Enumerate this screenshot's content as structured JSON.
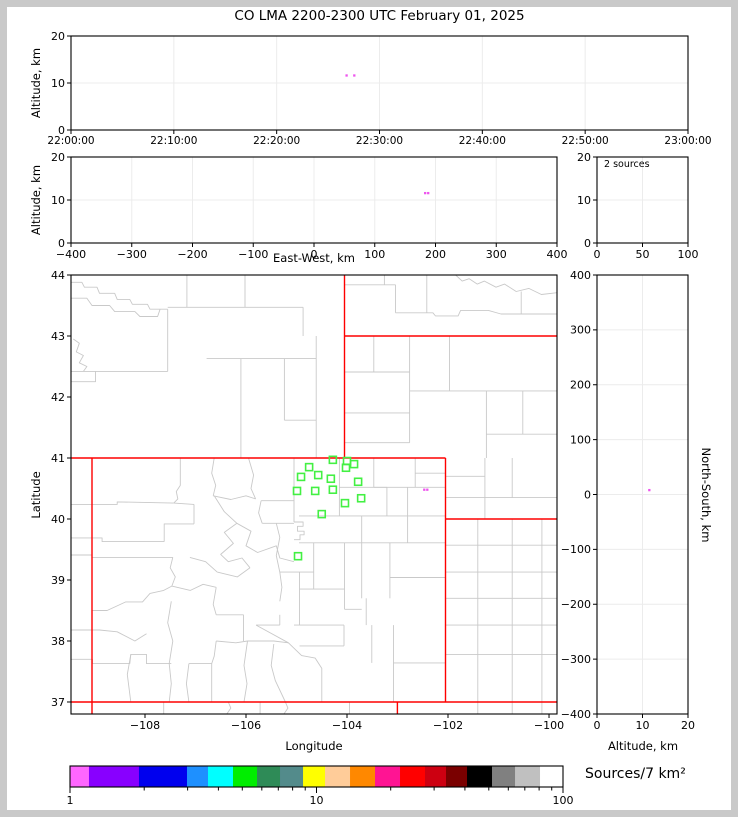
{
  "title": "CO LMA 2200-2300 UTC February 01, 2025",
  "labels": {
    "altitude_y": "Altitude, km",
    "east_west": "East-West, km",
    "latitude": "Latitude",
    "longitude": "Longitude",
    "altitude_bottom": "Altitude, km",
    "north_south": "North-South, km",
    "sources_annotation": "2 sources",
    "colorbar_label": "Sources/7 km²"
  },
  "colors": {
    "station": "#43f043",
    "source": "#ee55ee",
    "state_border": "#fe0000",
    "county": "#c9c9c9",
    "grid": "#ececec",
    "axis": "#000000",
    "frame": "#c9c9c9"
  },
  "chart_data": [
    {
      "id": "time_height",
      "type": "scatter",
      "ylabel": "Altitude, km",
      "x_ticks": [
        "22:00:00",
        "22:10:00",
        "22:20:00",
        "22:30:00",
        "22:40:00",
        "22:50:00",
        "23:00:00"
      ],
      "y_ticks": [
        "0",
        "10",
        "20"
      ],
      "xlim_seconds": [
        0,
        3600
      ],
      "ylim": [
        0,
        20
      ],
      "points": [
        {
          "time": "22:26:48",
          "t_seconds": 1608,
          "alt_km": 11.6
        },
        {
          "time": "22:27:33",
          "t_seconds": 1653,
          "alt_km": 11.6
        }
      ]
    },
    {
      "id": "ew_height",
      "type": "scatter",
      "xlabel": "East-West, km",
      "ylabel": "Altitude, km",
      "x_ticks": [
        "−400",
        "−300",
        "−200",
        "−100",
        "0",
        "100",
        "200",
        "300",
        "400"
      ],
      "y_ticks": [
        "0",
        "10",
        "20"
      ],
      "xlim": [
        -400,
        400
      ],
      "ylim": [
        0,
        20
      ],
      "points": [
        {
          "ew_km": 183,
          "alt_km": 11.6
        },
        {
          "ew_km": 188,
          "alt_km": 11.6
        }
      ]
    },
    {
      "id": "alt_histogram",
      "type": "histogram",
      "annotation": "2 sources",
      "x_ticks": [
        "0",
        "50",
        "100"
      ],
      "y_ticks": [
        "0",
        "10",
        "20"
      ],
      "xlim": [
        0,
        100
      ],
      "ylim": [
        0,
        20
      ],
      "values": []
    },
    {
      "id": "plan_map",
      "type": "map",
      "xlabel": "Longitude",
      "ylabel": "Latitude",
      "x_ticks": [
        "−108",
        "−106",
        "−104",
        "−102",
        "−100"
      ],
      "y_ticks": [
        "44",
        "43",
        "42",
        "41",
        "40",
        "39",
        "38",
        "37"
      ],
      "lonlim": [
        -109.465,
        -99.842
      ],
      "latlim": [
        36.803,
        44
      ],
      "stations": [
        {
          "lon": -104.28,
          "lat": 40.97
        },
        {
          "lon": -104.0,
          "lat": 40.95
        },
        {
          "lon": -103.86,
          "lat": 40.9
        },
        {
          "lon": -104.02,
          "lat": 40.84
        },
        {
          "lon": -104.75,
          "lat": 40.85
        },
        {
          "lon": -104.57,
          "lat": 40.72
        },
        {
          "lon": -104.91,
          "lat": 40.69
        },
        {
          "lon": -104.32,
          "lat": 40.66
        },
        {
          "lon": -103.78,
          "lat": 40.61
        },
        {
          "lon": -104.99,
          "lat": 40.46
        },
        {
          "lon": -104.63,
          "lat": 40.46
        },
        {
          "lon": -104.28,
          "lat": 40.48
        },
        {
          "lon": -103.72,
          "lat": 40.34
        },
        {
          "lon": -104.04,
          "lat": 40.26
        },
        {
          "lon": -104.5,
          "lat": 40.08
        },
        {
          "lon": -104.97,
          "lat": 39.39
        }
      ],
      "sources": [
        {
          "lon": -102.47,
          "lat": 40.48
        },
        {
          "lon": -102.41,
          "lat": 40.48
        }
      ],
      "state_borders": [
        "-109.465,41 -102.05,41",
        "-104.05,44 -104.05,41",
        "-104.05,43 -99.842,43",
        "-102.05,41 -102.05,37",
        "-102.05,40 -99.842,40",
        "-109.05,41 -109.05,36.803",
        "-109.465,37 -99.842,37",
        "-103.002,37 -103.002,36.803"
      ],
      "county_lines": [
        "-109.465,43.88 -109.25,43.88 -109.2,43.8 -108.95,43.8 -108.9,43.7 -108.6,43.7 -108.55,43.6 -108.3,43.6 -108.25,43.52 -107.95,43.52 -107.9,43.44 -107.55,43.44",
        "-109.465,43.62 -109.15,43.62 -109.05,43.5 -108.7,43.5 -108.6,43.4 -108.2,43.4 -108.1,43.32 -107.75,43.32 -107.7,43.44",
        "-107.17,44 -107.17,43.47",
        "-106.02,44 -106.02,43.47",
        "-107.55,43.47 -104.87,43.47",
        "-104.87,43.47 -104.87,43.0",
        "-107.55,43.44 -107.55,42.42",
        "-109.465,42.42 -107.55,42.42",
        "-109.465,42.25 -108.98,42.25 -108.98,42.42",
        "-109.42,42.95 -109.3,42.88 -109.36,42.74 -109.22,42.68 -109.3,42.56 -109.15,42.5 -109.22,42.42",
        "-106.78,42.63 -104.61,42.63",
        "-106.1,42.63 -106.1,41.0",
        "-105.24,42.63 -105.24,41.62",
        "-104.61,43.0 -104.61,41.0",
        "-105.24,41.62 -104.61,41.62",
        "-103.26,44 -103.26,43.84",
        "-104.05,43.84 -103.04,43.84",
        "-103.04,43.84 -103.04,43.38",
        "-103.04,43.38 -102.3,43.38 -102.25,43.33 -101.8,43.33 -101.75,43.42 -101.2,43.42 -100.95,43.36 -99.842,43.36",
        "-102.42,44 -102.42,43.38",
        "-101.85,44 -101.72,43.9 -101.58,43.94 -101.42,43.85 -101.28,43.9 -101.05,43.8 -100.88,43.85 -100.65,43.73 -100.4,43.78 -100.15,43.68 -99.842,43.71",
        "-100.55,43.73 -100.55,43.36",
        "-103.47,43.0 -103.47,42.41",
        "-104.05,42.41 -102.76,42.41",
        "-102.76,43.0 -102.76,41.25",
        "-101.97,43.0 -101.97,42.1",
        "-102.76,42.1 -99.842,42.1",
        "-101.24,42.1 -101.24,41.0",
        "-100.52,42.1 -100.52,41.39",
        "-104.05,41.74 -102.76,41.74",
        "-104.05,41.25 -102.76,41.25",
        "-101.24,41.39 -99.842,41.39",
        "-101.27,41.0 -101.27,40.0",
        "-100.73,41.0 -100.73,40.35",
        "-102.05,40.35 -99.842,40.35",
        "-102.05,40.7 -101.27,40.7",
        "-101.41,40.0 -101.41,36.803",
        "-100.73,40.0 -100.73,36.803",
        "-100.14,40.0 -100.14,36.803",
        "-102.05,39.57 -99.842,39.57",
        "-102.05,39.13 -99.842,39.13",
        "-102.05,38.7 -99.842,38.7",
        "-102.05,38.26 -99.842,38.26",
        "-102.05,37.78 -99.842,37.78",
        "-107.63,37.0 -107.63,36.803",
        "-106.35,37.0 -106.3,36.9 -106.38,36.803",
        "-105.72,37.0 -105.72,36.803",
        "-103.95,37.0 -103.95,36.803",
        "-105.22,37.0 -105.17,36.9 -105.25,36.803",
        "-107.3,41.0 -107.3,40.55 -107.38,40.45 -107.35,40.33 -107.43,40.26",
        "-109.465,40.24 -108.55,40.24 -108.55,40.28 -107.43,40.26",
        "-107.43,40.26 -107.03,40.24",
        "-106.63,41.0 -106.68,40.75 -106.6,40.55 -106.65,40.38",
        "-106.65,40.38 -106.3,40.32 -106.0,40.38 -105.81,40.33",
        "-105.95,41.0 -105.85,40.72 -105.9,40.5 -105.81,40.33",
        "-109.465,39.69 -108.85,39.69 -108.85,39.63 -107.62,39.63",
        "-107.62,39.63 -107.62,39.92 -107.03,39.92",
        "-107.03,40.24 -107.03,39.92",
        "-109.465,39.41 -109.05,39.41 -109.05,39.37 -107.45,39.37",
        "-107.45,39.37 -107.5,39.2 -107.4,39.05 -107.47,38.9",
        "-109.06,38.5 -108.75,38.5 -108.38,38.64 -108.05,38.64 -107.9,38.78 -107.63,38.83 -107.47,38.9",
        "-109.465,38.18 -108.9,38.18 -108.55,38.15 -108.2,38.0 -107.97,38.12",
        "-109.465,37.7 -109.04,37.7 -109.04,37.63 -108.3,37.63 -108.28,37.78 -107.97,37.78 -107.97,37.63 -107.48,37.63",
        "-108.28,37.78 -108.35,37.45 -108.28,37.0",
        "-107.48,38.65 -107.55,38.3 -107.45,38.0 -107.52,37.63",
        "-107.52,37.63 -107.48,37.3 -107.52,37.0",
        "-107.13,37.63 -107.18,37.3 -107.13,37.0",
        "-107.47,38.9 -107.1,38.83 -106.85,38.93 -106.59,38.88",
        "-106.59,38.88 -106.65,38.6 -106.59,38.43",
        "-106.05,38.43 -106.05,38.0",
        "-106.05,38.43 -106.59,38.43",
        "-106.18,39.93 -105.9,39.8 -106.0,39.56 -105.77,39.45 -105.4,39.56 -105.33,39.36 -105.05,39.3",
        "-106.63,40.38 -106.43,40.12 -106.18,39.93",
        "-106.18,39.93 -106.43,39.78 -106.25,39.6 -106.5,39.42 -106.35,39.3 -106.08,39.36 -105.92,39.2",
        "-105.92,39.2 -106.17,39.05 -106.57,39.13",
        "-106.57,39.13 -106.8,39.3 -107.11,39.37",
        "-105.4,39.93 -105.33,39.7 -105.4,39.4 -105.33,39.13",
        "-105.33,39.13 -104.66,39.13",
        "-105.7,40.3 -105.05,40.3",
        "-105.7,40.3 -105.75,40.1 -105.68,39.93",
        "-105.68,39.93 -105.05,39.93",
        "-105.05,41.0 -105.05,39.95",
        "-105.05,39.95 -104.87,39.95 -104.87,39.88 -104.98,39.88 -104.98,39.8 -104.85,39.8 -104.85,39.74 -104.93,39.74 -104.93,39.66 -105.05,39.66",
        "-105.33,39.13 -105.29,38.88 -105.33,38.65",
        "-104.94,38.85 -104.05,38.85",
        "-104.94,39.13 -104.94,38.26",
        "-105.8,38.26 -105.33,38.26",
        "-105.33,38.43 -105.33,38.26",
        "-105.8,38.26 -105.16,37.97",
        "-104.15,41.0 -104.15,40.05",
        "-104.15,40.52 -103.21,40.52",
        "-103.21,40.52 -103.21,40.05",
        "-103.47,41.0 -103.47,40.52",
        "-104.95,40.05 -102.05,40.05",
        "-102.65,41.0 -102.65,40.52",
        "-102.65,40.75 -102.05,40.75",
        "-103.47,40.52 -102.05,40.52",
        "-102.8,40.52 -102.8,39.61",
        "-103.71,40.05 -103.71,38.7",
        "-104.95,39.61 -102.05,39.61",
        "-104.66,39.61 -104.66,38.85",
        "-104.05,39.61 -104.05,38.52",
        "-103.15,39.61 -103.15,38.7",
        "-103.15,39.04 -102.05,39.04",
        "-103.62,38.7 -103.62,38.26",
        "-103.09,37.64 -102.05,37.64",
        "-103.08,38.26 -103.08,37.0",
        "-104.06,38.26 -104.06,37.92",
        "-104.94,37.92 -104.06,37.92",
        "-105.05,38.26 -104.06,38.26",
        "-103.51,38.26 -103.51,37.64",
        "-104.05,38.52 -103.71,38.52",
        "-105.16,37.97 -104.9,37.76 -104.63,37.72 -104.5,37.55 -104.5,37.0",
        "-105.97,38.0 -106.2,37.97 -106.59,38.0",
        "-105.97,38.0 -105.45,38.0 -105.16,37.97",
        "-105.97,38.0 -106.04,37.6 -105.98,37.3 -106.04,37.0",
        "-105.45,37.95 -105.5,37.6 -105.42,37.35 -105.22,37.0",
        "-106.68,37.63 -106.68,37.0",
        "-107.13,37.63 -106.68,37.63",
        "-106.59,38.0 -106.63,37.75 -106.68,37.63"
      ]
    },
    {
      "id": "ns_height",
      "type": "scatter",
      "xlabel": "Altitude, km",
      "ylabel": "North-South, km",
      "x_ticks": [
        "0",
        "10",
        "20"
      ],
      "y_ticks": [
        "400",
        "300",
        "200",
        "100",
        "0",
        "−100",
        "−200",
        "−300",
        "−400"
      ],
      "xlim": [
        0,
        20
      ],
      "ylim": [
        -400,
        400
      ],
      "points": [
        {
          "alt_km": 11.5,
          "ns_km": 8
        }
      ]
    }
  ],
  "colorbar": {
    "label": "Sources/7 km²",
    "scale": "log",
    "range": [
      1,
      100
    ],
    "tick_labels": [
      "1",
      "10",
      "100"
    ],
    "segments": [
      {
        "color": "#ff66ff",
        "width": 0.0385
      },
      {
        "color": "#8800ff",
        "width": 0.1014
      },
      {
        "color": "#0000ee",
        "width": 0.0974
      },
      {
        "color": "#1e90ff",
        "width": 0.0426
      },
      {
        "color": "#00ffff",
        "width": 0.0507
      },
      {
        "color": "#00ee00",
        "width": 0.0487
      },
      {
        "color": "#2e8b57",
        "width": 0.0467
      },
      {
        "color": "#538b8b",
        "width": 0.0467
      },
      {
        "color": "#ffff00",
        "width": 0.0446
      },
      {
        "color": "#ffcc99",
        "width": 0.0507
      },
      {
        "color": "#ff8800",
        "width": 0.0507
      },
      {
        "color": "#ff1493",
        "width": 0.0507
      },
      {
        "color": "#ff0000",
        "width": 0.0507
      },
      {
        "color": "#cd0011",
        "width": 0.0426
      },
      {
        "color": "#7a0000",
        "width": 0.0426
      },
      {
        "color": "#000000",
        "width": 0.0507
      },
      {
        "color": "#808080",
        "width": 0.0467
      },
      {
        "color": "#c0c0c0",
        "width": 0.0507
      },
      {
        "color": "#ffffff",
        "width": 0.0466
      }
    ]
  }
}
